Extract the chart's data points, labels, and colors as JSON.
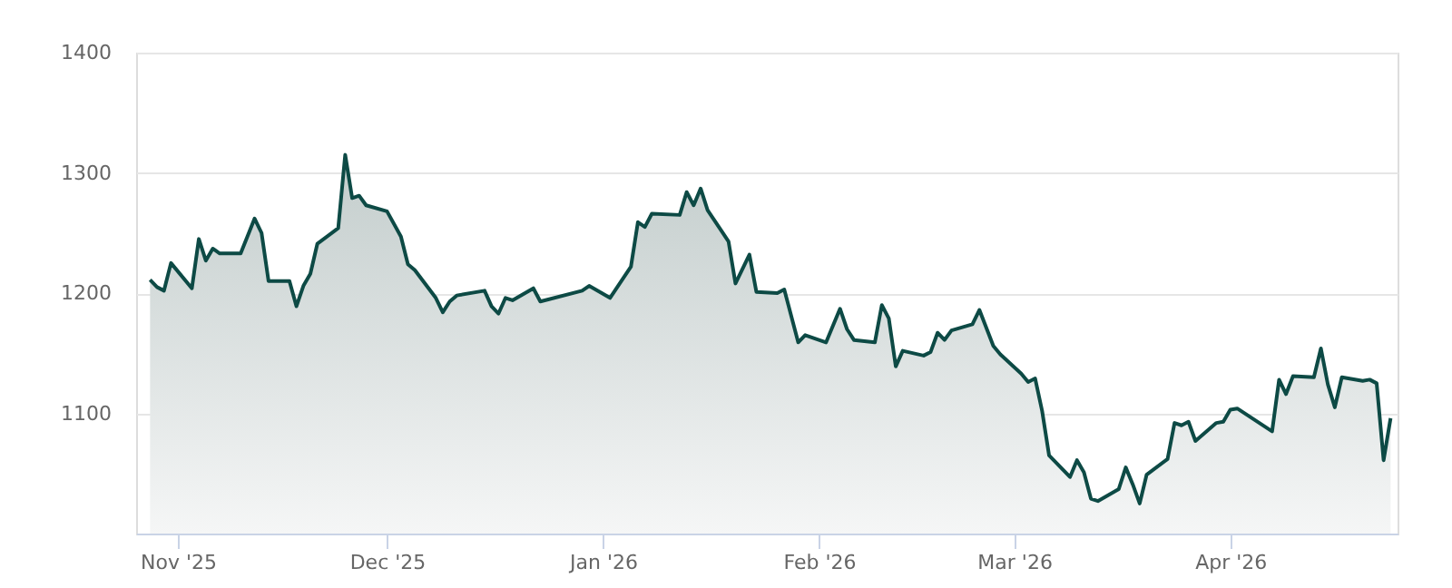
{
  "chart_data": {
    "type": "area",
    "color": "#0d4a45",
    "grid": "y",
    "line_style": "solid",
    "marker": "none",
    "x": [
      "2025-10-28",
      "2025-10-29",
      "2025-10-30",
      "2025-10-31",
      "2025-11-03",
      "2025-11-04",
      "2025-11-05",
      "2025-11-06",
      "2025-11-07",
      "2025-11-10",
      "2025-11-12",
      "2025-11-13",
      "2025-11-14",
      "2025-11-17",
      "2025-11-18",
      "2025-11-19",
      "2025-11-20",
      "2025-11-21",
      "2025-11-24",
      "2025-11-25",
      "2025-11-26",
      "2025-11-27",
      "2025-11-28",
      "2025-12-01",
      "2025-12-03",
      "2025-12-04",
      "2025-12-05",
      "2025-12-08",
      "2025-12-09",
      "2025-12-10",
      "2025-12-11",
      "2025-12-15",
      "2025-12-16",
      "2025-12-17",
      "2025-12-18",
      "2025-12-19",
      "2025-12-22",
      "2025-12-23",
      "2025-12-29",
      "2025-12-30",
      "2026-01-02",
      "2026-01-05",
      "2026-01-06",
      "2026-01-07",
      "2026-01-08",
      "2026-01-12",
      "2026-01-13",
      "2026-01-14",
      "2026-01-15",
      "2026-01-16",
      "2026-01-19",
      "2026-01-20",
      "2026-01-22",
      "2026-01-23",
      "2026-01-26",
      "2026-01-27",
      "2026-01-29",
      "2026-01-30",
      "2026-02-02",
      "2026-02-04",
      "2026-02-05",
      "2026-02-06",
      "2026-02-09",
      "2026-02-10",
      "2026-02-11",
      "2026-02-12",
      "2026-02-13",
      "2026-02-16",
      "2026-02-17",
      "2026-02-18",
      "2026-02-19",
      "2026-02-20",
      "2026-02-23",
      "2026-02-24",
      "2026-02-26",
      "2026-02-27",
      "2026-03-02",
      "2026-03-03",
      "2026-03-04",
      "2026-03-05",
      "2026-03-06",
      "2026-03-09",
      "2026-03-10",
      "2026-03-11",
      "2026-03-12",
      "2026-03-13",
      "2026-03-16",
      "2026-03-17",
      "2026-03-18",
      "2026-03-19",
      "2026-03-20",
      "2026-03-23",
      "2026-03-24",
      "2026-03-25",
      "2026-03-26",
      "2026-03-27",
      "2026-03-30",
      "2026-03-31",
      "2026-04-01",
      "2026-04-02",
      "2026-04-07",
      "2026-04-08",
      "2026-04-09",
      "2026-04-10",
      "2026-04-13",
      "2026-04-14",
      "2026-04-15",
      "2026-04-16",
      "2026-04-17",
      "2026-04-20",
      "2026-04-21",
      "2026-04-22",
      "2026-04-23",
      "2026-04-24"
    ],
    "values": [
      1211,
      1205,
      1202,
      1225,
      1204,
      1245,
      1227,
      1237,
      1233,
      1233,
      1262,
      1250,
      1210,
      1210,
      1189,
      1206,
      1216,
      1241,
      1254,
      1315,
      1279,
      1281,
      1273,
      1268,
      1247,
      1224,
      1219,
      1196,
      1184,
      1193,
      1198,
      1202,
      1189,
      1183,
      1196,
      1194,
      1204,
      1193,
      1202,
      1206,
      1196,
      1222,
      1259,
      1255,
      1266,
      1265,
      1284,
      1273,
      1287,
      1269,
      1243,
      1208,
      1232,
      1201,
      1200,
      1203,
      1159,
      1165,
      1159,
      1187,
      1170,
      1161,
      1159,
      1190,
      1179,
      1139,
      1152,
      1148,
      1151,
      1167,
      1161,
      1169,
      1174,
      1186,
      1156,
      1149,
      1133,
      1126,
      1129,
      1102,
      1065,
      1047,
      1061,
      1051,
      1029,
      1027,
      1037,
      1055,
      1041,
      1025,
      1049,
      1062,
      1092,
      1090,
      1093,
      1077,
      1092,
      1093,
      1103,
      1104,
      1085,
      1128,
      1116,
      1131,
      1130,
      1154,
      1124,
      1105,
      1130,
      1127,
      1128,
      1125,
      1061,
      1096
    ],
    "xlim": [
      "2025-10-26",
      "2026-04-25"
    ],
    "xticks": [
      {
        "value": "2025-11-01",
        "label": "Nov '25"
      },
      {
        "value": "2025-12-01",
        "label": "Dec '25"
      },
      {
        "value": "2026-01-01",
        "label": "Jan '26"
      },
      {
        "value": "2026-02-01",
        "label": "Feb '26"
      },
      {
        "value": "2026-03-01",
        "label": "Mar '26"
      },
      {
        "value": "2026-04-01",
        "label": "Apr '26"
      }
    ],
    "ylim": [
      1000,
      1400
    ],
    "yticks": [
      1100,
      1200,
      1300,
      1400
    ]
  }
}
